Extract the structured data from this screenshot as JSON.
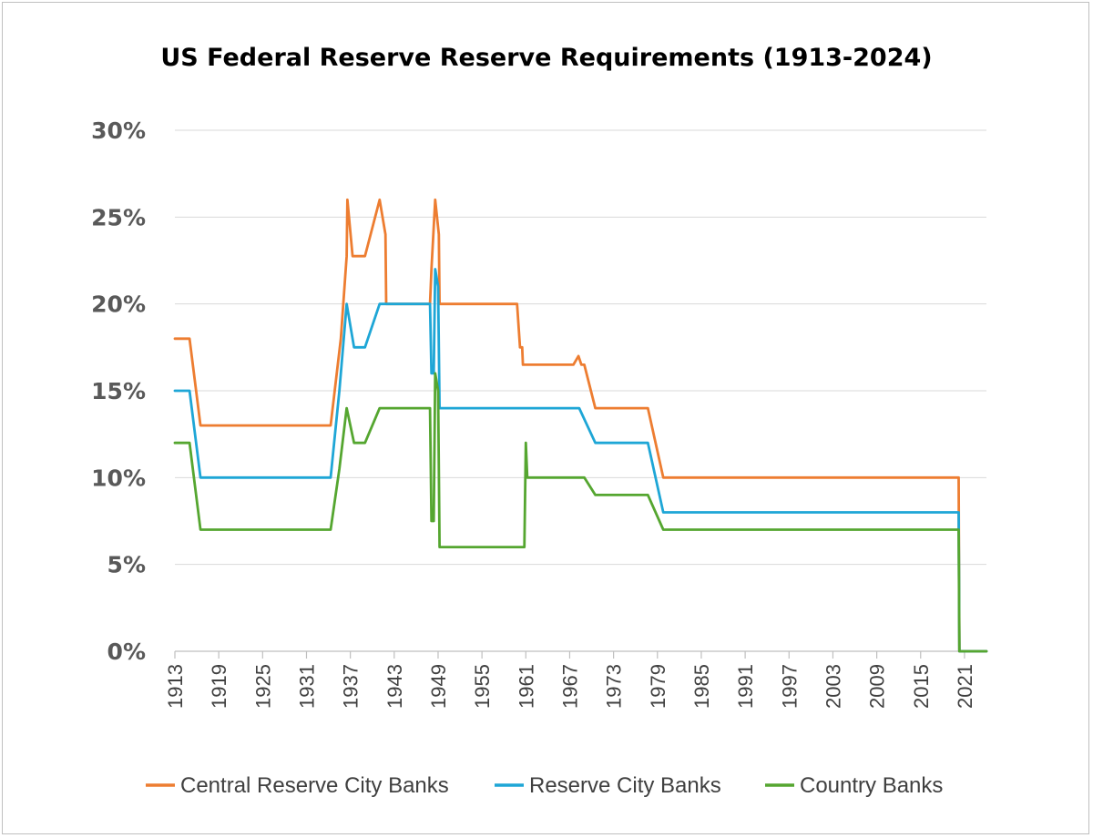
{
  "chart_data": {
    "type": "line",
    "title": "US Federal Reserve Reserve Requirements (1913-2024)",
    "xlabel": "",
    "ylabel": "",
    "xlim": [
      1913,
      2024
    ],
    "ylim": [
      0,
      30
    ],
    "y_ticks": [
      "0%",
      "5%",
      "10%",
      "15%",
      "20%",
      "25%",
      "30%"
    ],
    "x_ticks": [
      "1913",
      "1919",
      "1925",
      "1931",
      "1937",
      "1943",
      "1949",
      "1955",
      "1961",
      "1967",
      "1973",
      "1979",
      "1985",
      "1991",
      "1997",
      "2003",
      "2009",
      "2015",
      "2021"
    ],
    "grid": true,
    "legend_position": "bottom",
    "series": [
      {
        "name": "Central Reserve City Banks",
        "color": "#ed7d31",
        "points": [
          [
            1913,
            18
          ],
          [
            1915,
            18
          ],
          [
            1916.5,
            13
          ],
          [
            1934.3,
            13
          ],
          [
            1935.7,
            18
          ],
          [
            1936.5,
            22.75
          ],
          [
            1936.6,
            26
          ],
          [
            1937.3,
            22.75
          ],
          [
            1939,
            22.75
          ],
          [
            1941,
            26
          ],
          [
            1941.8,
            24
          ],
          [
            1941.9,
            20
          ],
          [
            1947.9,
            20
          ],
          [
            1948.1,
            22
          ],
          [
            1948.6,
            26
          ],
          [
            1949.1,
            24
          ],
          [
            1949.2,
            20
          ],
          [
            1959.8,
            20
          ],
          [
            1960.2,
            17.5
          ],
          [
            1960.5,
            17.5
          ],
          [
            1960.6,
            16.5
          ],
          [
            1967.5,
            16.5
          ],
          [
            1968.2,
            17
          ],
          [
            1968.6,
            16.5
          ],
          [
            1969,
            16.5
          ],
          [
            1970.5,
            14
          ],
          [
            1977.7,
            14
          ],
          [
            1979.8,
            10
          ],
          [
            2020.2,
            10
          ],
          [
            2020.3,
            0
          ],
          [
            2024,
            0
          ]
        ]
      },
      {
        "name": "Reserve City Banks",
        "color": "#1ea6d6",
        "points": [
          [
            1913,
            15
          ],
          [
            1915,
            15
          ],
          [
            1916.5,
            10
          ],
          [
            1934.3,
            10
          ],
          [
            1935.5,
            15
          ],
          [
            1936.5,
            20
          ],
          [
            1937.5,
            17.5
          ],
          [
            1939,
            17.5
          ],
          [
            1941,
            20
          ],
          [
            1947.9,
            20
          ],
          [
            1948.1,
            16
          ],
          [
            1948.4,
            16
          ],
          [
            1948.6,
            22
          ],
          [
            1949,
            21
          ],
          [
            1949.2,
            14
          ],
          [
            1968.3,
            14
          ],
          [
            1970.5,
            12
          ],
          [
            1977.7,
            12
          ],
          [
            1979.8,
            8
          ],
          [
            2020.2,
            8
          ],
          [
            2020.3,
            0
          ],
          [
            2024,
            0
          ]
        ]
      },
      {
        "name": "Country Banks",
        "color": "#55a630",
        "points": [
          [
            1913,
            12
          ],
          [
            1915,
            12
          ],
          [
            1916.5,
            7
          ],
          [
            1934.3,
            7
          ],
          [
            1935.5,
            10.5
          ],
          [
            1936.5,
            14
          ],
          [
            1937.5,
            12
          ],
          [
            1939,
            12
          ],
          [
            1941,
            14
          ],
          [
            1947.9,
            14
          ],
          [
            1948.1,
            7.5
          ],
          [
            1948.4,
            7.5
          ],
          [
            1948.6,
            16
          ],
          [
            1949,
            15
          ],
          [
            1949.2,
            6
          ],
          [
            1960.8,
            6
          ],
          [
            1961,
            12
          ],
          [
            1961.2,
            10
          ],
          [
            1969,
            10
          ],
          [
            1970.5,
            9
          ],
          [
            1977.7,
            9
          ],
          [
            1979.8,
            7
          ],
          [
            2020.2,
            7
          ],
          [
            2020.3,
            0
          ],
          [
            2024,
            0
          ]
        ]
      }
    ]
  }
}
